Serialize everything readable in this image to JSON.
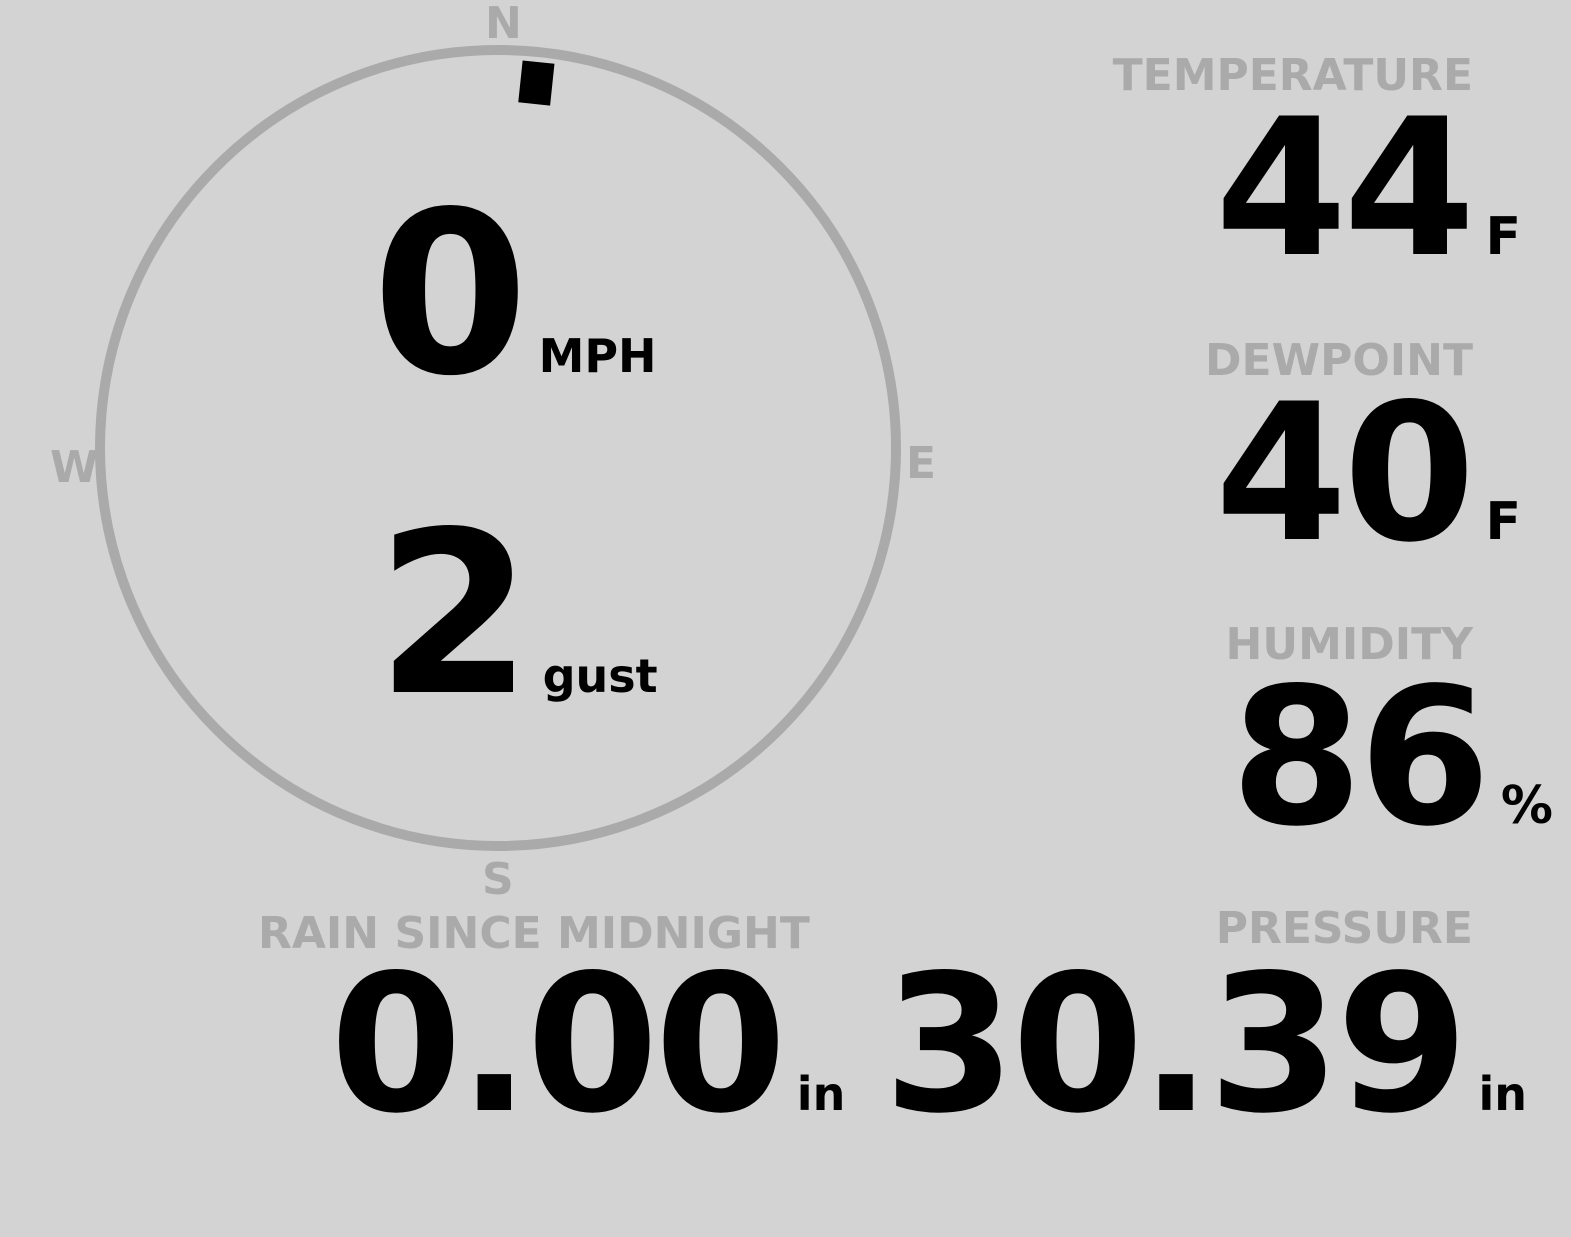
{
  "wind": {
    "speed": "0",
    "speed_unit": "MPH",
    "gust": "2",
    "gust_unit": "gust",
    "direction_degrees": 6,
    "compass": {
      "n": "N",
      "e": "E",
      "s": "S",
      "w": "W"
    }
  },
  "temperature": {
    "label": "TEMPERATURE",
    "value": "44",
    "unit": "F"
  },
  "dewpoint": {
    "label": "DEWPOINT",
    "value": "40",
    "unit": "F"
  },
  "humidity": {
    "label": "HUMIDITY",
    "value": "86",
    "unit": "%"
  },
  "rain": {
    "label": "RAIN SINCE MIDNIGHT",
    "value": "0.00",
    "unit": "in"
  },
  "pressure": {
    "label": "PRESSURE",
    "value": "30.39",
    "unit": "in"
  },
  "colors": {
    "background": "#d3d3d3",
    "label": "#aaaaaa",
    "value": "#000000"
  }
}
